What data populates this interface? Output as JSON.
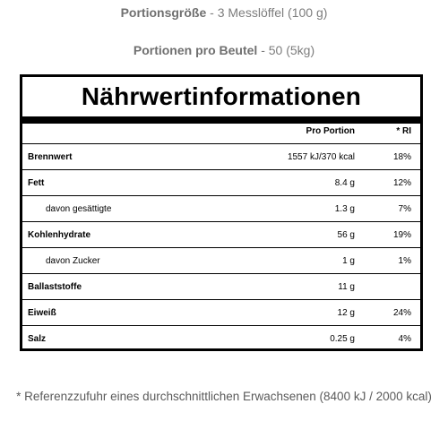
{
  "serving": {
    "size_label": "Portionsgröße",
    "size_value": " - 3 Messlöffel (100 g)",
    "per_bag_label": "Portionen pro Beutel",
    "per_bag_value": " - 50 (5kg)"
  },
  "panel": {
    "title": "Nährwertinformationen",
    "col_per_portion": "Pro Portion",
    "col_ri": "* RI",
    "rows": [
      {
        "label": "Brennwert",
        "amount": "1557 kJ/370 kcal",
        "ri": "18%"
      },
      {
        "label": "Fett",
        "amount": "8.4 g",
        "ri": "12%"
      },
      {
        "label": "davon gesättigte",
        "amount": "1.3 g",
        "ri": "7%"
      },
      {
        "label": "Kohlenhydrate",
        "amount": "56 g",
        "ri": "19%"
      },
      {
        "label": "davon Zucker",
        "amount": "1 g",
        "ri": "1%"
      },
      {
        "label": "Ballaststoffe",
        "amount": "11 g",
        "ri": ""
      },
      {
        "label": "Eiweiß",
        "amount": "12 g",
        "ri": "24%"
      },
      {
        "label": "Salz",
        "amount": "0.25 g",
        "ri": "4%"
      }
    ]
  },
  "footnote": "* Referenzzufuhr eines durchschnittlichen Erwachsenen (8400 kJ / 2000 kcal)"
}
